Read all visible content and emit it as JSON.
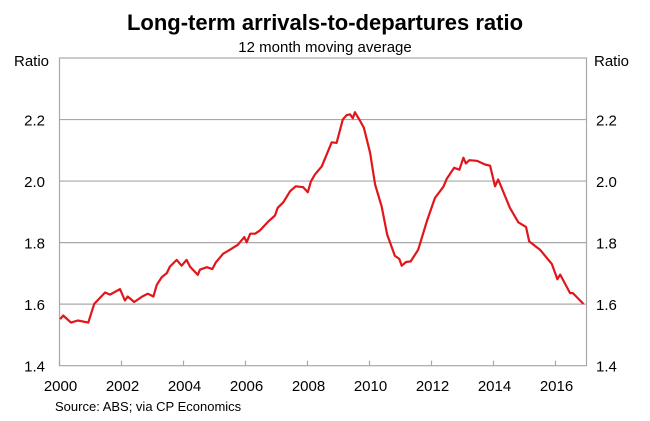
{
  "chart_data": {
    "type": "line",
    "title": "Long-term arrivals-to-departures ratio",
    "subtitle": "12 month moving average",
    "ylabel_left": "Ratio",
    "ylabel_right": "Ratio",
    "xlabel": "",
    "source": "Source: ABS; via CP Economics",
    "xlim": [
      2000,
      2017
    ],
    "ylim": [
      1.4,
      2.4
    ],
    "x_ticks": [
      2000,
      2002,
      2004,
      2006,
      2008,
      2010,
      2012,
      2014,
      2016
    ],
    "x_tick_labels": [
      "2000",
      "2002",
      "2004",
      "2006",
      "2008",
      "2010",
      "2012",
      "2014",
      "2016"
    ],
    "y_ticks": [
      1.4,
      1.6,
      1.8,
      2.0,
      2.2
    ],
    "y_tick_labels": [
      "1.4",
      "1.6",
      "1.8",
      "2.0",
      "2.2"
    ],
    "grid": true,
    "line_color": "#e0161b",
    "series": [
      {
        "name": "Arrivals-to-departures ratio",
        "points": [
          [
            2000.02,
            1.551
          ],
          [
            2000.12,
            1.563
          ],
          [
            2000.37,
            1.54
          ],
          [
            2000.59,
            1.547
          ],
          [
            2000.93,
            1.54
          ],
          [
            2001.12,
            1.601
          ],
          [
            2001.47,
            1.638
          ],
          [
            2001.63,
            1.631
          ],
          [
            2001.95,
            1.649
          ],
          [
            2002.11,
            1.612
          ],
          [
            2002.2,
            1.625
          ],
          [
            2002.41,
            1.607
          ],
          [
            2002.67,
            1.625
          ],
          [
            2002.85,
            1.634
          ],
          [
            2003.03,
            1.625
          ],
          [
            2003.14,
            1.663
          ],
          [
            2003.3,
            1.688
          ],
          [
            2003.46,
            1.701
          ],
          [
            2003.56,
            1.722
          ],
          [
            2003.78,
            1.744
          ],
          [
            2003.94,
            1.725
          ],
          [
            2004.1,
            1.744
          ],
          [
            2004.21,
            1.722
          ],
          [
            2004.46,
            1.695
          ],
          [
            2004.53,
            1.712
          ],
          [
            2004.75,
            1.72
          ],
          [
            2004.93,
            1.714
          ],
          [
            2005.04,
            1.735
          ],
          [
            2005.28,
            1.764
          ],
          [
            2005.5,
            1.777
          ],
          [
            2005.75,
            1.793
          ],
          [
            2005.96,
            1.818
          ],
          [
            2006.04,
            1.801
          ],
          [
            2006.15,
            1.829
          ],
          [
            2006.31,
            1.829
          ],
          [
            2006.47,
            1.84
          ],
          [
            2006.74,
            1.869
          ],
          [
            2006.95,
            1.888
          ],
          [
            2007.04,
            1.913
          ],
          [
            2007.22,
            1.931
          ],
          [
            2007.44,
            1.967
          ],
          [
            2007.62,
            1.983
          ],
          [
            2007.86,
            1.98
          ],
          [
            2008.01,
            1.964
          ],
          [
            2008.11,
            1.999
          ],
          [
            2008.24,
            2.021
          ],
          [
            2008.46,
            2.048
          ],
          [
            2008.78,
            2.126
          ],
          [
            2008.94,
            2.124
          ],
          [
            2009.14,
            2.2
          ],
          [
            2009.26,
            2.214
          ],
          [
            2009.37,
            2.217
          ],
          [
            2009.46,
            2.204
          ],
          [
            2009.53,
            2.224
          ],
          [
            2009.67,
            2.2
          ],
          [
            2009.82,
            2.173
          ],
          [
            2010.02,
            2.092
          ],
          [
            2010.18,
            1.989
          ],
          [
            2010.39,
            1.918
          ],
          [
            2010.57,
            1.826
          ],
          [
            2010.82,
            1.757
          ],
          [
            2010.96,
            1.747
          ],
          [
            2011.04,
            1.725
          ],
          [
            2011.18,
            1.737
          ],
          [
            2011.33,
            1.739
          ],
          [
            2011.57,
            1.777
          ],
          [
            2011.85,
            1.869
          ],
          [
            2012.11,
            1.945
          ],
          [
            2012.38,
            1.981
          ],
          [
            2012.49,
            2.007
          ],
          [
            2012.73,
            2.043
          ],
          [
            2012.9,
            2.037
          ],
          [
            2013.03,
            2.076
          ],
          [
            2013.11,
            2.057
          ],
          [
            2013.22,
            2.068
          ],
          [
            2013.46,
            2.066
          ],
          [
            2013.73,
            2.054
          ],
          [
            2013.89,
            2.05
          ],
          [
            2014.05,
            1.983
          ],
          [
            2014.15,
            2.005
          ],
          [
            2014.53,
            1.913
          ],
          [
            2014.8,
            1.866
          ],
          [
            2015.05,
            1.851
          ],
          [
            2015.15,
            1.804
          ],
          [
            2015.5,
            1.777
          ],
          [
            2015.88,
            1.731
          ],
          [
            2016.06,
            1.681
          ],
          [
            2016.15,
            1.696
          ],
          [
            2016.47,
            1.636
          ],
          [
            2016.56,
            1.636
          ],
          [
            2016.9,
            1.601
          ]
        ]
      }
    ]
  }
}
